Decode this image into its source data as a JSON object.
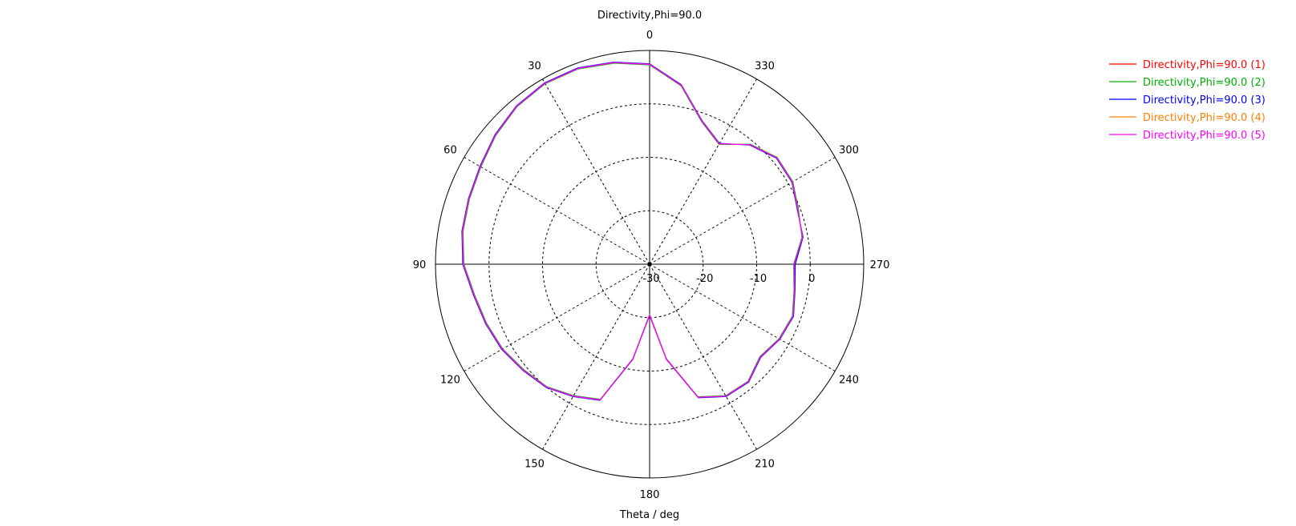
{
  "chart_data": {
    "type": "polar-line",
    "title": "Directivity,Phi=90.0",
    "xlabel": "Theta / deg",
    "angle_ticks": [
      "0",
      "30",
      "60",
      "90",
      "120",
      "150",
      "180",
      "210",
      "240",
      "270",
      "300",
      "330"
    ],
    "angle_tick_values": [
      0,
      30,
      60,
      90,
      120,
      150,
      180,
      210,
      240,
      270,
      300,
      330
    ],
    "radial_ticks": [
      "-30",
      "-20",
      "-10",
      "0"
    ],
    "radial_range": [
      -30,
      10
    ],
    "angle_direction": "counterclockwise",
    "zero_location": "top",
    "legend_position": "top-right",
    "theta": [
      0,
      10,
      20,
      30,
      40,
      50,
      60,
      70,
      80,
      90,
      100,
      110,
      120,
      130,
      140,
      150,
      160,
      170,
      180,
      190,
      200,
      210,
      220,
      230,
      240,
      250,
      260,
      270,
      280,
      290,
      300,
      310,
      320,
      330,
      340,
      350
    ],
    "series": [
      {
        "name": "Directivity,Phi=90.0 (1)",
        "color": "#ff0000",
        "values": [
          7.4,
          8.3,
          9.0,
          9.1,
          8.6,
          7.6,
          6.5,
          5.9,
          5.5,
          4.8,
          3.3,
          2.5,
          1.8,
          0.8,
          0.0,
          -1.5,
          -3.0,
          -12.0,
          -20.5,
          -12.0,
          -3.5,
          -1.5,
          -1.3,
          -3.0,
          -2.0,
          -1.5,
          -2.5,
          -3.0,
          -1.0,
          -0.5,
          0.8,
          1.0,
          -0.8,
          -4.0,
          -1.5,
          4.0
        ]
      },
      {
        "name": "Directivity,Phi=90.0 (2)",
        "color": "#00b000",
        "values": [
          7.3,
          8.2,
          8.9,
          9.0,
          8.5,
          7.5,
          6.4,
          5.8,
          5.4,
          4.7,
          3.2,
          2.4,
          1.7,
          0.7,
          -0.1,
          -1.6,
          -3.1,
          -12.1,
          -20.6,
          -12.1,
          -3.6,
          -1.6,
          -1.4,
          -3.1,
          -2.1,
          -1.6,
          -2.6,
          -3.1,
          -1.1,
          -0.4,
          0.9,
          1.1,
          -0.7,
          -4.1,
          -1.6,
          3.9
        ]
      },
      {
        "name": "Directivity,Phi=90.0 (3)",
        "color": "#0000ff",
        "values": [
          7.5,
          8.4,
          9.1,
          9.2,
          8.7,
          7.7,
          6.6,
          6.0,
          5.6,
          4.9,
          3.4,
          2.6,
          1.9,
          0.9,
          0.1,
          -1.4,
          -2.9,
          -11.9,
          -20.4,
          -11.9,
          -3.4,
          -1.4,
          -1.2,
          -2.9,
          -1.9,
          -1.4,
          -2.4,
          -2.8,
          -0.9,
          -0.6,
          0.7,
          0.9,
          -0.9,
          -3.9,
          -1.4,
          4.1
        ]
      },
      {
        "name": "Directivity,Phi=90.0 (4)",
        "color": "#ff8000",
        "values": [
          7.4,
          8.3,
          9.0,
          9.1,
          8.6,
          7.6,
          6.5,
          5.9,
          5.5,
          4.8,
          3.3,
          2.5,
          1.8,
          0.8,
          0.0,
          -1.5,
          -3.0,
          -12.0,
          -20.5,
          -12.0,
          -3.5,
          -1.5,
          -1.3,
          -3.0,
          -2.0,
          -1.5,
          -2.5,
          -3.0,
          -1.0,
          -0.5,
          0.8,
          1.0,
          -0.8,
          -4.0,
          -1.5,
          4.0
        ]
      },
      {
        "name": "Directivity,Phi=90.0 (5)",
        "color": "#ff00ff",
        "values": [
          7.4,
          8.3,
          9.0,
          9.1,
          8.6,
          7.6,
          6.5,
          5.9,
          5.5,
          4.8,
          3.3,
          2.5,
          1.8,
          0.8,
          0.0,
          -1.5,
          -3.0,
          -12.0,
          -20.5,
          -12.0,
          -3.5,
          -1.5,
          -1.3,
          -3.0,
          -2.0,
          -1.5,
          -2.5,
          -3.0,
          -1.0,
          -0.5,
          0.8,
          1.0,
          -0.8,
          -4.0,
          -1.5,
          4.0
        ]
      }
    ]
  }
}
